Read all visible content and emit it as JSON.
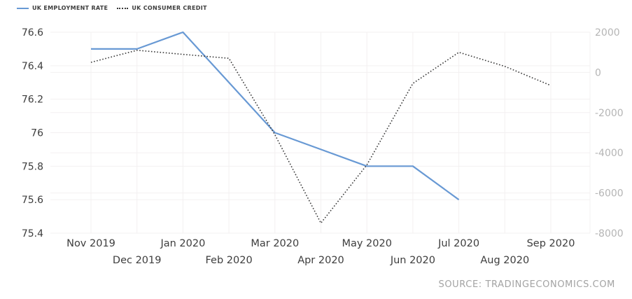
{
  "legend": {
    "items": [
      {
        "label": "UK EMPLOYMENT RATE",
        "color": "#6899d4",
        "style": "solid"
      },
      {
        "label": "UK CONSUMER CREDIT",
        "color": "#3a3a3a",
        "style": "dotted"
      }
    ]
  },
  "source": {
    "text": "SOURCE: TRADINGECONOMICS.COM"
  },
  "colors": {
    "employment_line": "#6899d4",
    "credit_line": "#3a3a3a",
    "grid": "#f3f0f1",
    "left_axis_text": "#3d3d3d",
    "right_axis_text": "#b5b5b5",
    "x_axis_text": "#3d3d3d"
  },
  "chart_data": {
    "type": "line",
    "title": "",
    "xlabel": "",
    "ylabel": "",
    "grid": true,
    "legend_position": "top-left",
    "categories": [
      "Nov 2019",
      "Dec 2019",
      "Jan 2020",
      "Feb 2020",
      "Mar 2020",
      "Apr 2020",
      "May 2020",
      "Jun 2020",
      "Jul 2020",
      "Aug 2020",
      "Sep 2020"
    ],
    "series": [
      {
        "name": "UK EMPLOYMENT RATE",
        "axis": "left",
        "line_style": "solid",
        "color": "#6899d4",
        "values": [
          76.5,
          76.5,
          76.6,
          76.3,
          76.0,
          75.9,
          75.8,
          75.8,
          75.6,
          null,
          null
        ]
      },
      {
        "name": "UK CONSUMER CREDIT",
        "axis": "right",
        "line_style": "dotted",
        "color": "#3a3a3a",
        "values": [
          500,
          1100,
          900,
          700,
          -3100,
          -7500,
          -4600,
          -550,
          1000,
          300,
          -650
        ]
      }
    ],
    "axes": {
      "left": {
        "min": 75.4,
        "max": 76.6,
        "ticks": [
          76.6,
          76.4,
          76.2,
          76,
          75.8,
          75.6,
          75.4
        ]
      },
      "right": {
        "min": -8000,
        "max": 2000,
        "ticks": [
          2000,
          0,
          -2000,
          -4000,
          -6000,
          -8000
        ]
      }
    }
  }
}
